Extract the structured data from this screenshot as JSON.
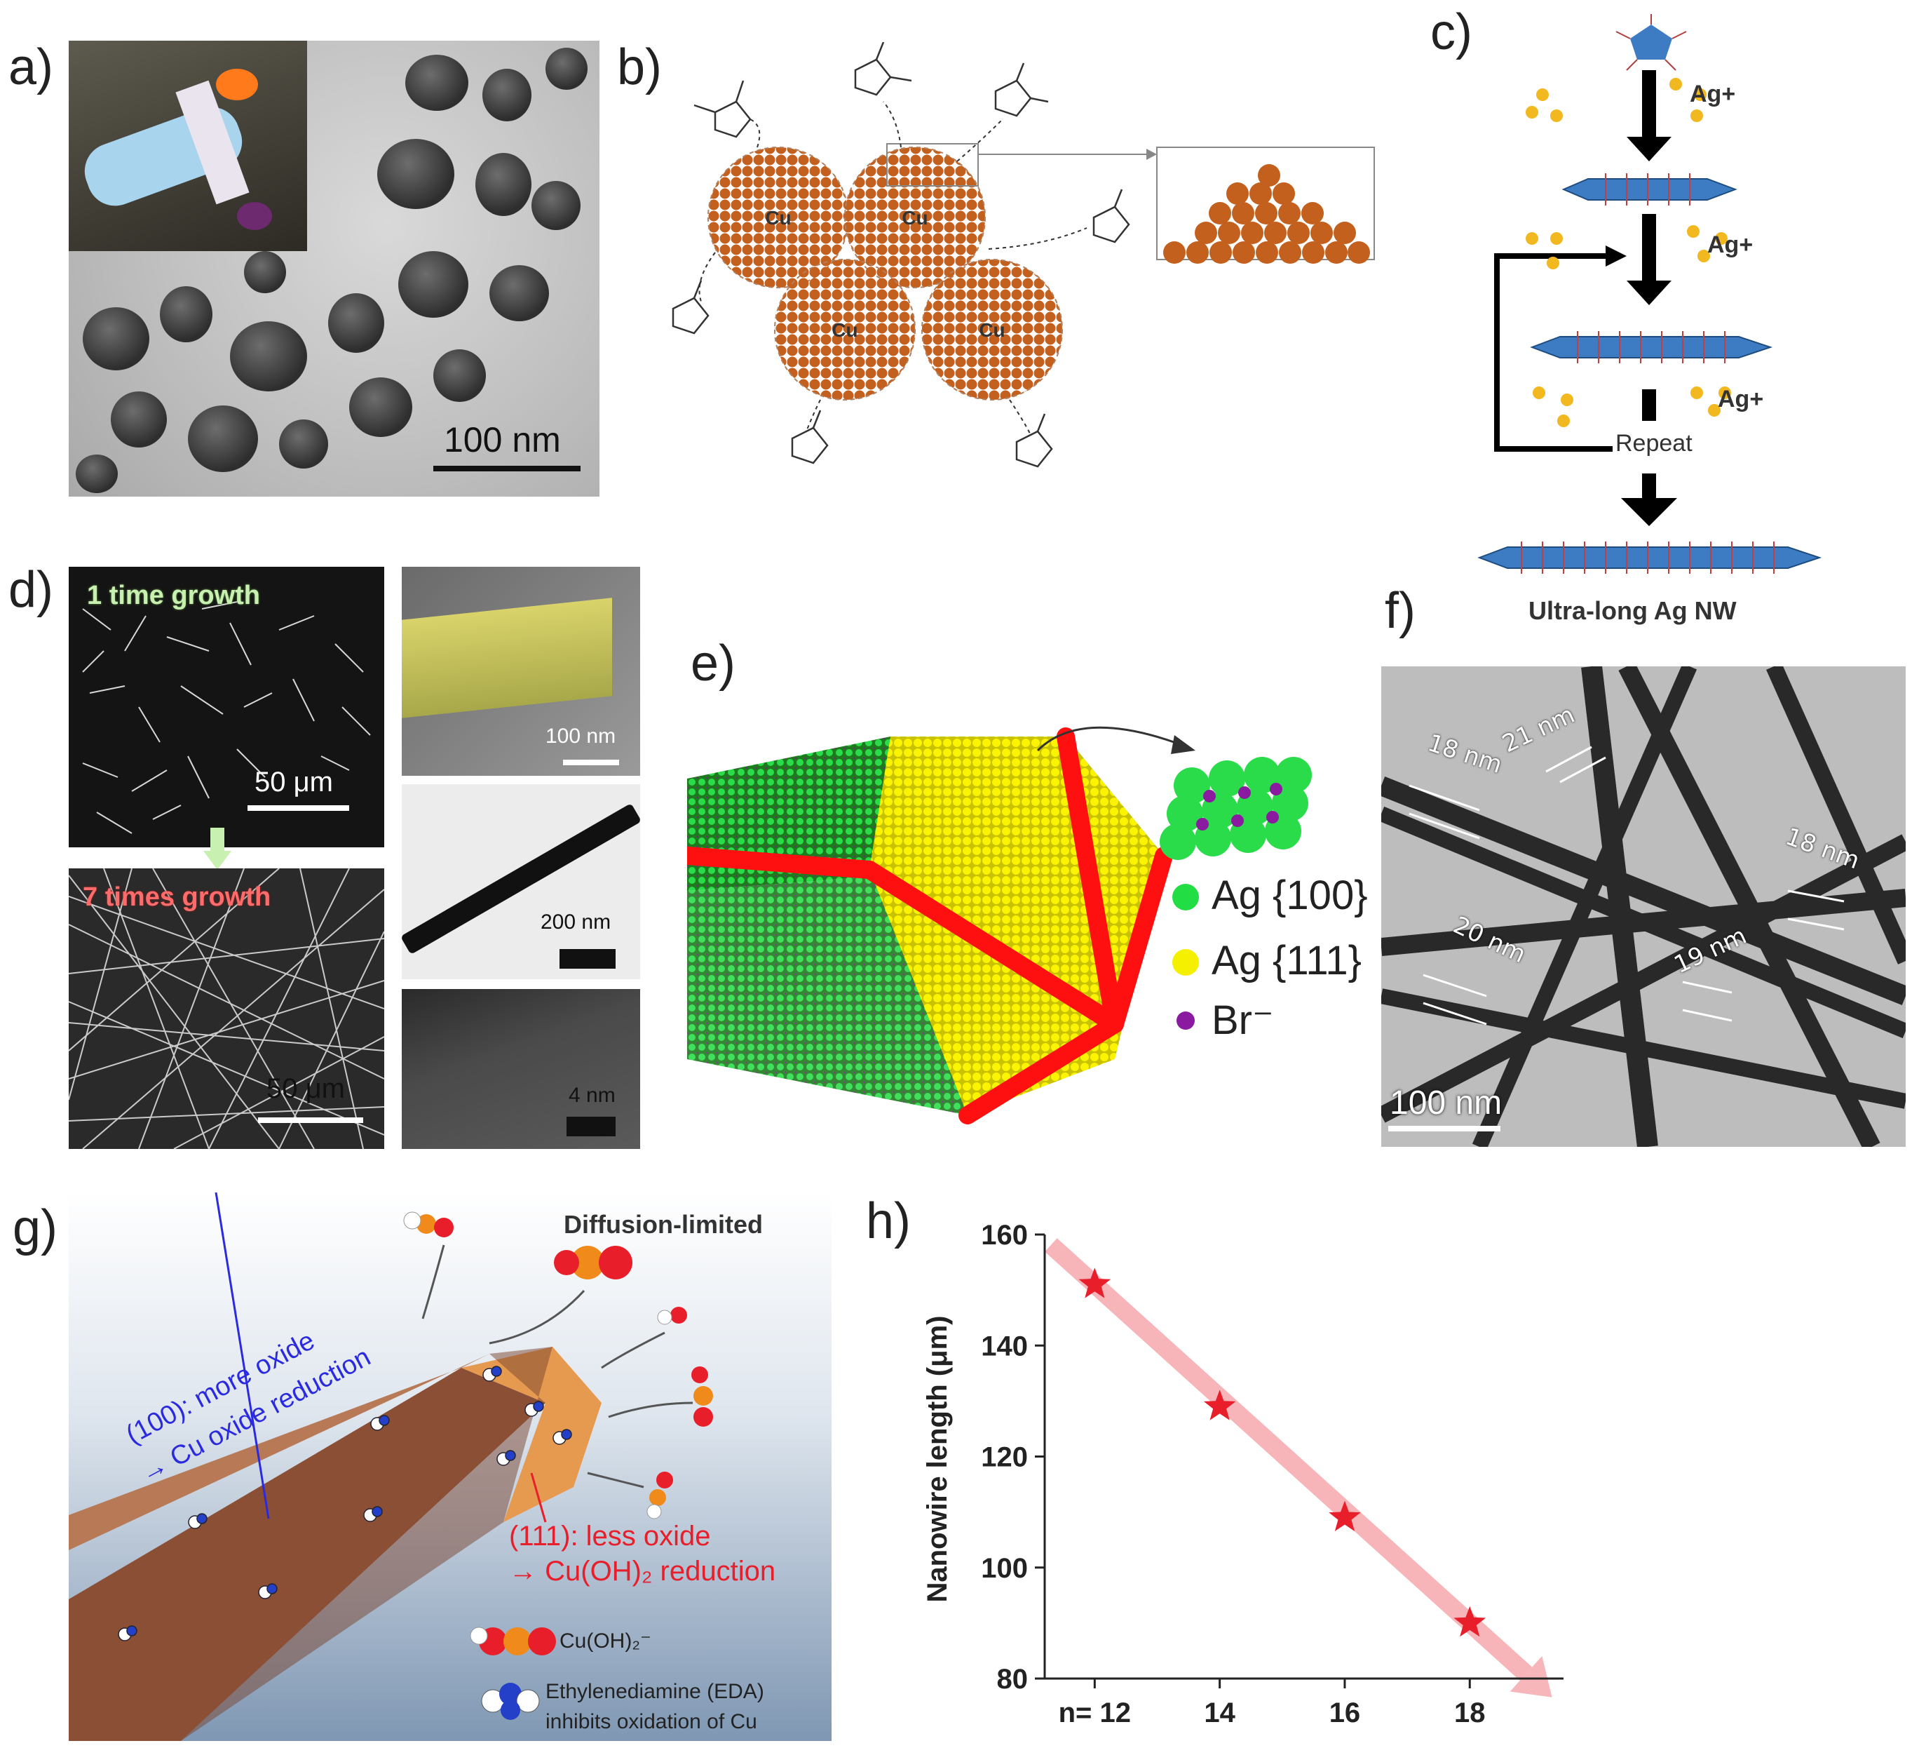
{
  "panels": {
    "a": {
      "label": "a)",
      "scale": "100 nm"
    },
    "b": {
      "label": "b)",
      "particle": "Cu"
    },
    "c": {
      "label": "c)",
      "ion": "Ag+",
      "repeat": "Repeat",
      "product": "Ultra-long Ag NW"
    },
    "d": {
      "label": "d)",
      "top_caption": "1 time growth",
      "bottom_caption": "7 times growth",
      "scale_top": "50 μm",
      "scale_bottom": "50 μm",
      "right_scales": [
        "100 nm",
        "200 nm",
        "4 nm"
      ]
    },
    "e": {
      "label": "e)",
      "legend": [
        {
          "text": "Ag {100}",
          "color": "#22dd44"
        },
        {
          "text": "Ag {111}",
          "color": "#f5f000"
        },
        {
          "text": "Br⁻",
          "color": "#8a1aa0"
        }
      ]
    },
    "f": {
      "label": "f)",
      "scale": "100 nm",
      "widths": [
        "18 nm",
        "21 nm",
        "18 nm",
        "20 nm",
        "19 nm"
      ]
    },
    "g": {
      "label": "g)",
      "title": "Diffusion-limited",
      "blue_line1": "(100): more oxide",
      "blue_line2": "→ Cu oxide reduction",
      "red_line1": "(111): less oxide",
      "red_line2": "→ Cu(OH)₂ reduction",
      "legend1": "Cu(OH)₂⁻",
      "legend2a": "Ethylenediamine (EDA)",
      "legend2b": "inhibits oxidation of Cu"
    },
    "h": {
      "label": "h)"
    }
  },
  "chart_data": {
    "type": "scatter",
    "title": "",
    "xlabel": "",
    "ylabel": "Nanowire length (μm)",
    "x_tick_labels": [
      "n= 12",
      "14",
      "16",
      "18"
    ],
    "y_tick_labels": [
      "80",
      "100",
      "120",
      "140",
      "160"
    ],
    "xlim": [
      11.2,
      19.5
    ],
    "ylim": [
      80,
      160
    ],
    "series": [
      {
        "x": [
          12,
          14,
          16,
          18
        ],
        "y": [
          151,
          129,
          109,
          90
        ]
      }
    ],
    "marker": "star",
    "marker_color": "#e81e2a",
    "trend_arrow_color": "#f6a9ad"
  }
}
